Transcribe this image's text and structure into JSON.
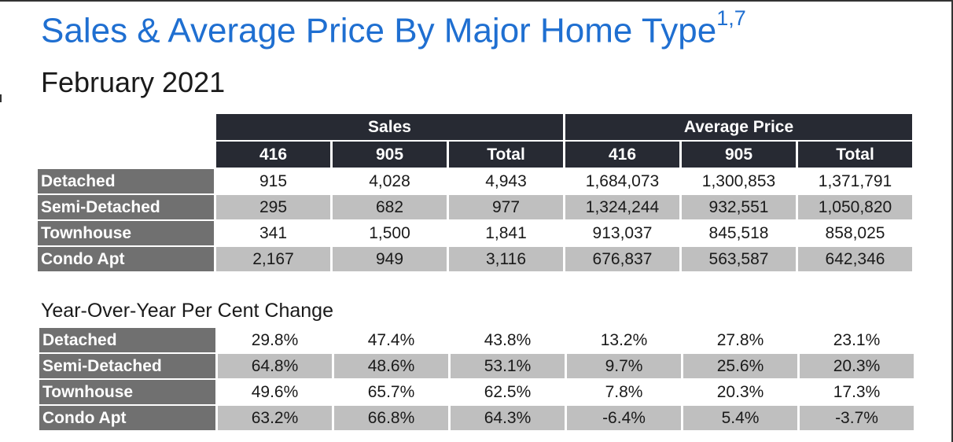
{
  "title": "Sales & Average Price By Major Home Type",
  "title_footnote": "1,7",
  "subtitle": "February 2021",
  "main_table": {
    "group_headers": [
      "Sales",
      "Average Price"
    ],
    "sub_headers": [
      "416",
      "905",
      "Total",
      "416",
      "905",
      "Total"
    ],
    "rows": [
      {
        "label": "Detached",
        "values": [
          "915",
          "4,028",
          "4,943",
          "1,684,073",
          "1,300,853",
          "1,371,791"
        ]
      },
      {
        "label": "Semi-Detached",
        "values": [
          "295",
          "682",
          "977",
          "1,324,244",
          "932,551",
          "1,050,820"
        ]
      },
      {
        "label": "Townhouse",
        "values": [
          "341",
          "1,500",
          "1,841",
          "913,037",
          "845,518",
          "858,025"
        ]
      },
      {
        "label": "Condo Apt",
        "values": [
          "2,167",
          "949",
          "3,116",
          "676,837",
          "563,587",
          "642,346"
        ]
      }
    ]
  },
  "yoy_section_title": "Year-Over-Year Per Cent Change",
  "yoy_table": {
    "rows": [
      {
        "label": "Detached",
        "values": [
          "29.8%",
          "47.4%",
          "43.8%",
          "13.2%",
          "27.8%",
          "23.1%"
        ]
      },
      {
        "label": "Semi-Detached",
        "values": [
          "64.8%",
          "48.6%",
          "53.1%",
          "9.7%",
          "25.6%",
          "20.3%"
        ]
      },
      {
        "label": "Townhouse",
        "values": [
          "49.6%",
          "65.7%",
          "62.5%",
          "7.8%",
          "20.3%",
          "17.3%"
        ]
      },
      {
        "label": "Condo Apt",
        "values": [
          "63.2%",
          "66.8%",
          "64.3%",
          "-6.4%",
          "5.4%",
          "-3.7%"
        ]
      }
    ]
  }
}
